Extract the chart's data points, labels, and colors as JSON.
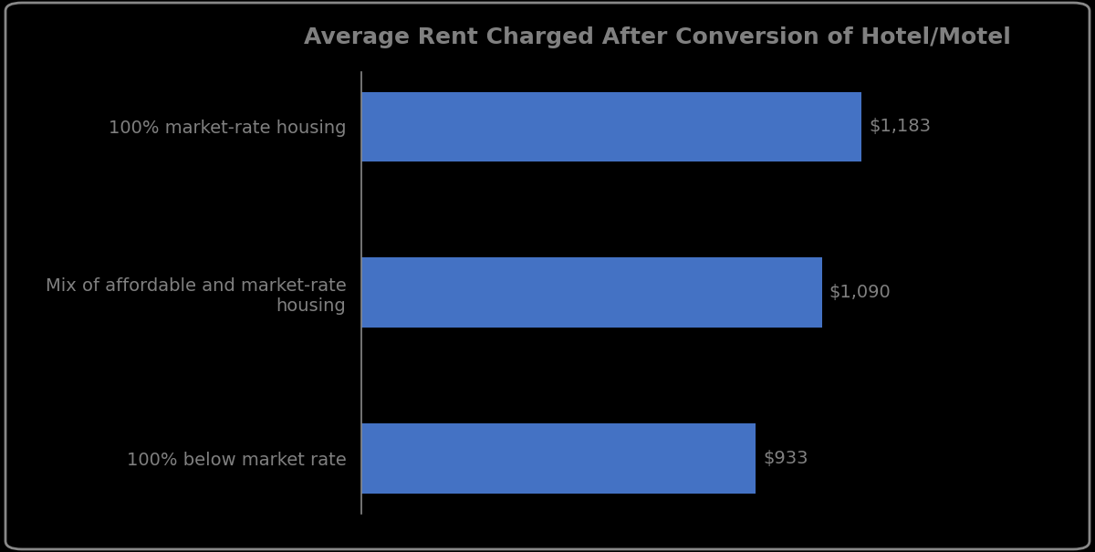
{
  "title": "Average Rent Charged After Conversion of Hotel/Motel",
  "categories": [
    "100% below market rate",
    "Mix of affordable and market-rate\nhousing",
    "100% market-rate housing"
  ],
  "values": [
    933,
    1090,
    1183
  ],
  "value_labels": [
    "$933",
    "$1,090",
    "$1,183"
  ],
  "bar_color": "#4472C4",
  "background_color": "#000000",
  "text_color": "#808080",
  "title_color": "#808080",
  "bar_label_color": "#808080",
  "figsize": [
    12.0,
    6.05
  ],
  "dpi": 100,
  "xlim": [
    0,
    1400
  ],
  "title_fontsize": 18,
  "label_fontsize": 14,
  "value_fontsize": 14,
  "border_color": "#888888"
}
